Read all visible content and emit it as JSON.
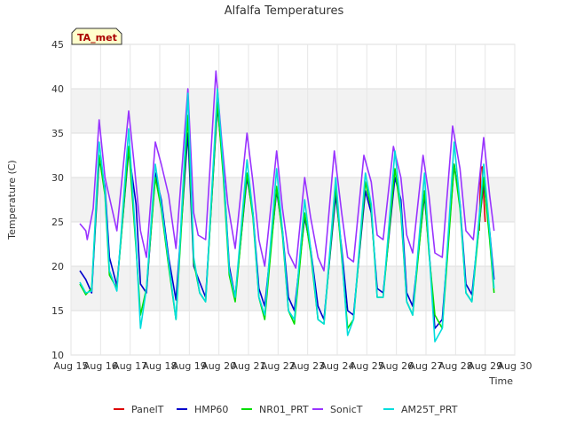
{
  "chart_data": {
    "type": "line",
    "title": "Alfalfa Temperatures",
    "xlabel": "Time",
    "ylabel": "Temperature (C)",
    "station_label": "TA_met",
    "ylim": [
      10,
      45
    ],
    "xlim": [
      15,
      30
    ],
    "grid": true,
    "legend_position": "bottom",
    "y_ticks": [
      10,
      15,
      20,
      25,
      30,
      35,
      40,
      45
    ],
    "x_ticks": [
      {
        "v": 15,
        "label": "Aug 15"
      },
      {
        "v": 16,
        "label": "Aug 16"
      },
      {
        "v": 17,
        "label": "Aug 17"
      },
      {
        "v": 18,
        "label": "Aug 18"
      },
      {
        "v": 19,
        "label": "Aug 19"
      },
      {
        "v": 20,
        "label": "Aug 20"
      },
      {
        "v": 21,
        "label": "Aug 21"
      },
      {
        "v": 22,
        "label": "Aug 22"
      },
      {
        "v": 23,
        "label": "Aug 23"
      },
      {
        "v": 24,
        "label": "Aug 24"
      },
      {
        "v": 25,
        "label": "Aug 25"
      },
      {
        "v": 26,
        "label": "Aug 26"
      },
      {
        "v": 27,
        "label": "Aug 27"
      },
      {
        "v": 28,
        "label": "Aug 28"
      },
      {
        "v": 29,
        "label": "Aug 29"
      },
      {
        "v": 30,
        "label": "Aug 30"
      }
    ],
    "series": [
      {
        "name": "PanelT",
        "color": "#dd0000",
        "points": [
          [
            28.8,
            24.0
          ],
          [
            28.85,
            31.0
          ],
          [
            28.9,
            31.2
          ],
          [
            28.95,
            28.0
          ],
          [
            29.0,
            25.0
          ]
        ]
      },
      {
        "name": "HMP60",
        "color": "#0000cc",
        "points": [
          [
            15.3,
            19.5
          ],
          [
            15.5,
            18.5
          ],
          [
            15.7,
            17.0
          ],
          [
            15.95,
            32.0
          ],
          [
            16.15,
            29.0
          ],
          [
            16.3,
            21.0
          ],
          [
            16.55,
            17.8
          ],
          [
            16.95,
            33.0
          ],
          [
            17.2,
            27.0
          ],
          [
            17.35,
            18.0
          ],
          [
            17.55,
            17.0
          ],
          [
            17.85,
            30.5
          ],
          [
            18.05,
            27.5
          ],
          [
            18.3,
            21.0
          ],
          [
            18.55,
            16.2
          ],
          [
            18.95,
            35.0
          ],
          [
            19.15,
            20.0
          ],
          [
            19.35,
            18.2
          ],
          [
            19.55,
            16.5
          ],
          [
            19.95,
            38.0
          ],
          [
            20.15,
            31.0
          ],
          [
            20.35,
            20.0
          ],
          [
            20.55,
            16.5
          ],
          [
            20.95,
            30.0
          ],
          [
            21.15,
            26.0
          ],
          [
            21.35,
            17.5
          ],
          [
            21.55,
            15.5
          ],
          [
            21.95,
            28.5
          ],
          [
            22.15,
            24.0
          ],
          [
            22.35,
            16.5
          ],
          [
            22.55,
            15.0
          ],
          [
            22.9,
            25.5
          ],
          [
            23.1,
            22.0
          ],
          [
            23.35,
            15.5
          ],
          [
            23.55,
            14.0
          ],
          [
            23.95,
            28.0
          ],
          [
            24.15,
            22.0
          ],
          [
            24.35,
            15.0
          ],
          [
            24.55,
            14.5
          ],
          [
            24.95,
            28.5
          ],
          [
            25.15,
            26.0
          ],
          [
            25.35,
            17.5
          ],
          [
            25.55,
            17.0
          ],
          [
            25.95,
            30.0
          ],
          [
            26.15,
            27.5
          ],
          [
            26.35,
            17.0
          ],
          [
            26.55,
            15.5
          ],
          [
            26.95,
            28.0
          ],
          [
            27.1,
            22.0
          ],
          [
            27.3,
            13.0
          ],
          [
            27.55,
            14.0
          ],
          [
            27.95,
            31.5
          ],
          [
            28.15,
            27.0
          ],
          [
            28.35,
            18.0
          ],
          [
            28.55,
            16.8
          ],
          [
            28.95,
            29.5
          ],
          [
            29.15,
            24.0
          ],
          [
            29.3,
            18.5
          ]
        ]
      },
      {
        "name": "NR01_PRT",
        "color": "#00dd00",
        "points": [
          [
            15.3,
            18.0
          ],
          [
            15.5,
            16.8
          ],
          [
            15.7,
            17.5
          ],
          [
            15.95,
            32.5
          ],
          [
            16.15,
            28.0
          ],
          [
            16.3,
            19.0
          ],
          [
            16.55,
            17.5
          ],
          [
            16.95,
            33.5
          ],
          [
            17.2,
            22.0
          ],
          [
            17.35,
            14.5
          ],
          [
            17.55,
            17.5
          ],
          [
            17.85,
            30.0
          ],
          [
            18.05,
            26.5
          ],
          [
            18.3,
            20.0
          ],
          [
            18.55,
            14.0
          ],
          [
            18.95,
            37.0
          ],
          [
            19.15,
            20.5
          ],
          [
            19.35,
            17.0
          ],
          [
            19.55,
            16.0
          ],
          [
            19.95,
            38.5
          ],
          [
            20.15,
            30.0
          ],
          [
            20.35,
            19.0
          ],
          [
            20.55,
            16.0
          ],
          [
            20.95,
            30.5
          ],
          [
            21.15,
            25.5
          ],
          [
            21.35,
            16.5
          ],
          [
            21.55,
            14.0
          ],
          [
            21.95,
            29.0
          ],
          [
            22.15,
            23.5
          ],
          [
            22.35,
            15.0
          ],
          [
            22.55,
            13.5
          ],
          [
            22.9,
            26.0
          ],
          [
            23.1,
            21.5
          ],
          [
            23.35,
            14.0
          ],
          [
            23.55,
            13.5
          ],
          [
            23.95,
            29.0
          ],
          [
            24.15,
            21.0
          ],
          [
            24.35,
            13.0
          ],
          [
            24.55,
            14.0
          ],
          [
            24.95,
            29.5
          ],
          [
            25.15,
            26.5
          ],
          [
            25.35,
            16.5
          ],
          [
            25.55,
            16.5
          ],
          [
            25.95,
            31.0
          ],
          [
            26.15,
            26.0
          ],
          [
            26.35,
            16.0
          ],
          [
            26.55,
            14.5
          ],
          [
            26.95,
            28.5
          ],
          [
            27.1,
            21.5
          ],
          [
            27.3,
            14.5
          ],
          [
            27.55,
            13.0
          ],
          [
            27.95,
            31.5
          ],
          [
            28.15,
            26.5
          ],
          [
            28.35,
            17.0
          ],
          [
            28.55,
            16.0
          ],
          [
            28.95,
            30.0
          ],
          [
            29.15,
            23.0
          ],
          [
            29.3,
            17.0
          ]
        ]
      },
      {
        "name": "SonicT",
        "color": "#9933ff",
        "points": [
          [
            15.3,
            24.8
          ],
          [
            15.5,
            24.0
          ],
          [
            15.55,
            23.0
          ],
          [
            15.75,
            26.5
          ],
          [
            15.95,
            36.5
          ],
          [
            16.15,
            30.0
          ],
          [
            16.35,
            27.0
          ],
          [
            16.55,
            24.0
          ],
          [
            16.95,
            37.5
          ],
          [
            17.15,
            31.0
          ],
          [
            17.35,
            24.0
          ],
          [
            17.55,
            21.0
          ],
          [
            17.85,
            34.0
          ],
          [
            18.05,
            31.5
          ],
          [
            18.3,
            28.0
          ],
          [
            18.55,
            22.0
          ],
          [
            18.95,
            40.0
          ],
          [
            19.15,
            26.0
          ],
          [
            19.3,
            23.5
          ],
          [
            19.55,
            23.0
          ],
          [
            19.9,
            42.0
          ],
          [
            20.1,
            34.0
          ],
          [
            20.3,
            27.0
          ],
          [
            20.55,
            22.0
          ],
          [
            20.95,
            35.0
          ],
          [
            21.15,
            29.5
          ],
          [
            21.35,
            23.0
          ],
          [
            21.55,
            20.0
          ],
          [
            21.95,
            33.0
          ],
          [
            22.15,
            26.5
          ],
          [
            22.35,
            21.5
          ],
          [
            22.6,
            19.8
          ],
          [
            22.9,
            30.0
          ],
          [
            23.1,
            25.5
          ],
          [
            23.35,
            21.0
          ],
          [
            23.55,
            19.5
          ],
          [
            23.9,
            33.0
          ],
          [
            24.15,
            26.0
          ],
          [
            24.35,
            21.0
          ],
          [
            24.55,
            20.5
          ],
          [
            24.9,
            32.5
          ],
          [
            25.15,
            29.5
          ],
          [
            25.35,
            23.5
          ],
          [
            25.55,
            23.0
          ],
          [
            25.9,
            33.5
          ],
          [
            26.15,
            30.0
          ],
          [
            26.35,
            23.5
          ],
          [
            26.55,
            21.5
          ],
          [
            26.9,
            32.5
          ],
          [
            27.1,
            28.0
          ],
          [
            27.3,
            21.5
          ],
          [
            27.55,
            21.0
          ],
          [
            27.9,
            35.8
          ],
          [
            28.15,
            31.0
          ],
          [
            28.35,
            24.0
          ],
          [
            28.6,
            23.0
          ],
          [
            28.95,
            34.5
          ],
          [
            29.15,
            28.0
          ],
          [
            29.3,
            24.0
          ]
        ]
      },
      {
        "name": "AM25T_PRT",
        "color": "#00dddd",
        "points": [
          [
            15.3,
            18.2
          ],
          [
            15.5,
            17.0
          ],
          [
            15.7,
            17.2
          ],
          [
            15.95,
            34.0
          ],
          [
            16.15,
            28.5
          ],
          [
            16.3,
            19.5
          ],
          [
            16.55,
            17.2
          ],
          [
            16.95,
            35.5
          ],
          [
            17.2,
            22.5
          ],
          [
            17.35,
            13.0
          ],
          [
            17.55,
            17.5
          ],
          [
            17.85,
            31.5
          ],
          [
            18.05,
            27.0
          ],
          [
            18.3,
            20.5
          ],
          [
            18.55,
            14.0
          ],
          [
            18.95,
            39.5
          ],
          [
            19.15,
            21.0
          ],
          [
            19.35,
            17.0
          ],
          [
            19.55,
            16.0
          ],
          [
            19.95,
            40.0
          ],
          [
            20.15,
            31.0
          ],
          [
            20.35,
            19.5
          ],
          [
            20.55,
            16.5
          ],
          [
            20.95,
            32.0
          ],
          [
            21.15,
            26.0
          ],
          [
            21.35,
            16.5
          ],
          [
            21.55,
            14.5
          ],
          [
            21.95,
            31.0
          ],
          [
            22.15,
            24.0
          ],
          [
            22.35,
            15.0
          ],
          [
            22.55,
            14.0
          ],
          [
            22.9,
            27.5
          ],
          [
            23.1,
            22.0
          ],
          [
            23.35,
            14.0
          ],
          [
            23.55,
            13.5
          ],
          [
            23.95,
            30.0
          ],
          [
            24.15,
            21.5
          ],
          [
            24.35,
            12.2
          ],
          [
            24.55,
            14.0
          ],
          [
            24.95,
            30.5
          ],
          [
            25.15,
            27.0
          ],
          [
            25.35,
            16.5
          ],
          [
            25.55,
            16.5
          ],
          [
            25.95,
            33.0
          ],
          [
            26.15,
            26.5
          ],
          [
            26.35,
            16.0
          ],
          [
            26.55,
            14.5
          ],
          [
            26.95,
            30.5
          ],
          [
            27.1,
            22.0
          ],
          [
            27.3,
            11.5
          ],
          [
            27.55,
            13.0
          ],
          [
            27.95,
            34.0
          ],
          [
            28.15,
            27.0
          ],
          [
            28.35,
            17.0
          ],
          [
            28.55,
            16.0
          ],
          [
            28.95,
            31.5
          ],
          [
            29.15,
            24.0
          ],
          [
            29.3,
            17.5
          ]
        ]
      }
    ]
  }
}
